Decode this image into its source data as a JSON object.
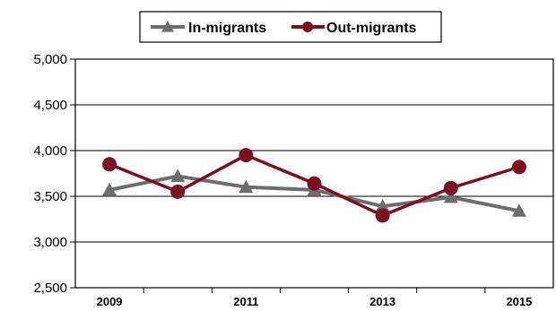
{
  "chart_data": {
    "type": "line",
    "x": [
      "2009",
      "2010",
      "2011",
      "2012",
      "2013",
      "2014",
      "2015"
    ],
    "x_tick_labels": [
      "2009",
      "2011",
      "2013",
      "2015"
    ],
    "series": [
      {
        "name": "In-migrants",
        "color": "#6d6d6d",
        "marker": "triangle",
        "values": [
          3570,
          3720,
          3600,
          3570,
          3390,
          3490,
          3340
        ]
      },
      {
        "name": "Out-migrants",
        "color": "#7a1020",
        "marker": "circle",
        "values": [
          3850,
          3550,
          3950,
          3640,
          3290,
          3590,
          3820
        ]
      }
    ],
    "ylim": [
      2500,
      5000
    ],
    "y_ticks": [
      {
        "value": 2500,
        "label": "2,500"
      },
      {
        "value": 3000,
        "label": "3,000"
      },
      {
        "value": 3500,
        "label": "3,500"
      },
      {
        "value": 4000,
        "label": "4,000"
      },
      {
        "value": 4500,
        "label": "4,500"
      },
      {
        "value": 5000,
        "label": "5,000"
      }
    ],
    "grid": true,
    "legend_position": "top-center"
  }
}
